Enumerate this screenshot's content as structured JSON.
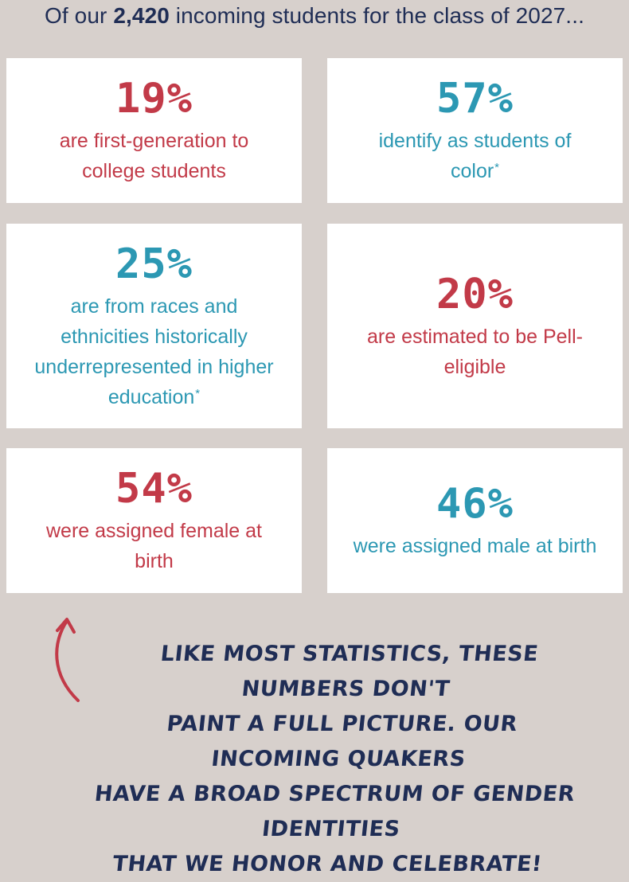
{
  "header": {
    "prefix": "Of our ",
    "count": "2,420",
    "suffix": " incoming students for the class of 2027..."
  },
  "stats": [
    {
      "percent": "19%",
      "lines": [
        "are first-generation to",
        "college students"
      ],
      "asterisk": "",
      "color": "#c23a48"
    },
    {
      "percent": "57%",
      "lines": [
        "identify as students of",
        "color"
      ],
      "asterisk": "*",
      "color": "#2c98b3"
    },
    {
      "percent": "25%",
      "lines": [
        "are from races and",
        "ethnicities historically",
        "underrepresented in higher",
        "education"
      ],
      "asterisk": "*",
      "color": "#2c98b3"
    },
    {
      "percent": "20%",
      "lines": [
        "are estimated to be Pell-",
        "eligible"
      ],
      "asterisk": "",
      "color": "#c23a48"
    },
    {
      "percent": "54%",
      "lines": [
        "were assigned female at",
        "birth"
      ],
      "asterisk": "",
      "color": "#c23a48"
    },
    {
      "percent": "46%",
      "lines": [
        "were assigned male at birth"
      ],
      "asterisk": "",
      "color": "#2c98b3"
    }
  ],
  "note": {
    "lines": [
      "LIKE MOST STATISTICS, THESE NUMBERS DON'T",
      "PAINT A FULL PICTURE. OUR INCOMING QUAKERS",
      "HAVE A BROAD SPECTRUM OF GENDER IDENTITIES",
      "THAT WE HONOR AND CELEBRATE!"
    ],
    "icon": "curved-arrow-up-icon",
    "arrow_color": "#c23a48"
  },
  "colors": {
    "background": "#d7d0cc",
    "navy": "#1f2d55",
    "red": "#c23a48",
    "teal": "#2c98b3"
  }
}
